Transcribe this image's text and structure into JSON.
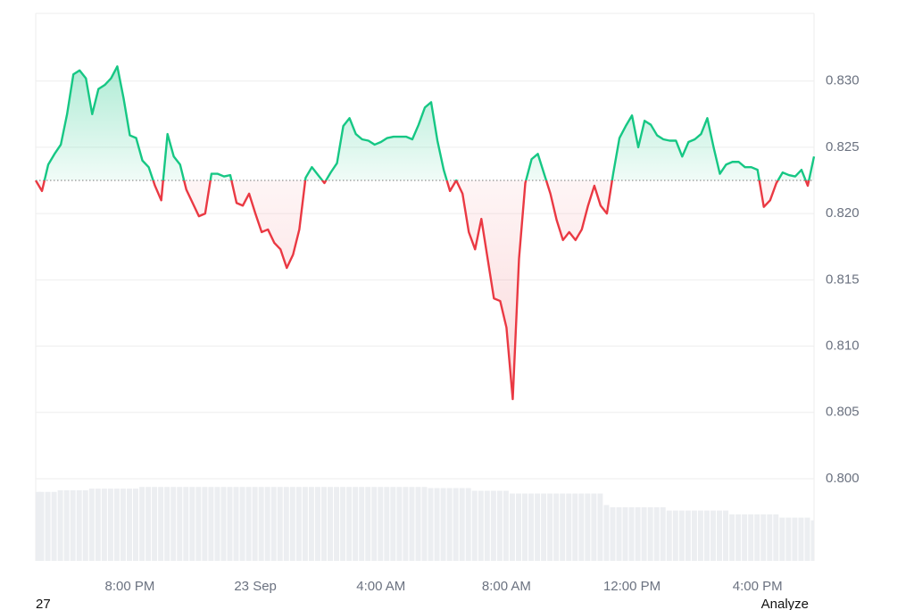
{
  "chart_data": {
    "type": "line",
    "x": [
      17,
      17.2,
      17.4,
      17.6,
      17.8,
      18,
      18.2,
      18.4,
      18.6,
      18.8,
      19,
      19.2,
      19.4,
      19.6,
      19.8,
      20,
      20.2,
      20.4,
      20.6,
      20.8,
      21,
      21.2,
      21.4,
      21.6,
      21.8,
      22,
      22.2,
      22.4,
      22.6,
      22.8,
      23,
      23.2,
      23.4,
      23.6,
      23.8,
      24,
      24.2,
      24.4,
      24.6,
      24.8,
      25,
      25.2,
      25.4,
      25.6,
      25.8,
      26,
      26.2,
      26.4,
      26.6,
      26.8,
      27,
      27.2,
      27.4,
      27.6,
      27.8,
      28,
      28.2,
      28.4,
      28.6,
      28.8,
      29,
      29.2,
      29.4,
      29.6,
      29.8,
      30,
      30.2,
      30.4,
      30.6,
      30.8,
      31,
      31.2,
      31.4,
      31.6,
      31.8,
      32,
      32.2,
      32.4,
      32.6,
      32.8,
      33,
      33.2,
      33.4,
      33.6,
      33.8,
      34,
      34.2,
      34.4,
      34.6,
      34.8,
      35,
      35.2,
      35.4,
      35.6,
      35.8,
      36,
      36.2,
      36.4,
      36.6,
      36.8,
      37,
      37.2,
      37.4,
      37.6,
      37.8,
      38,
      38.2,
      38.4,
      38.6,
      38.8,
      39,
      39.2,
      39.4,
      39.6,
      39.8,
      40,
      40.2,
      40.4,
      40.6,
      40.8,
      41,
      41.2,
      41.4,
      41.6,
      41.8
    ],
    "values": [
      0.8225,
      0.8217,
      0.8237,
      0.8245,
      0.8252,
      0.8275,
      0.8305,
      0.8308,
      0.8302,
      0.8275,
      0.8294,
      0.8297,
      0.8302,
      0.8311,
      0.8287,
      0.8259,
      0.8257,
      0.824,
      0.8235,
      0.8221,
      0.821,
      0.826,
      0.8243,
      0.8237,
      0.8218,
      0.8208,
      0.8198,
      0.82,
      0.823,
      0.823,
      0.8228,
      0.8229,
      0.8208,
      0.8206,
      0.8215,
      0.82,
      0.8186,
      0.8188,
      0.8178,
      0.8173,
      0.8159,
      0.8169,
      0.8188,
      0.8227,
      0.8235,
      0.8229,
      0.8223,
      0.8231,
      0.8238,
      0.8266,
      0.8272,
      0.826,
      0.8256,
      0.8255,
      0.8252,
      0.8254,
      0.8257,
      0.8258,
      0.8258,
      0.8258,
      0.8256,
      0.8267,
      0.828,
      0.8284,
      0.8255,
      0.8233,
      0.8217,
      0.8225,
      0.8215,
      0.8186,
      0.8173,
      0.8196,
      0.8166,
      0.8136,
      0.8134,
      0.8114,
      0.806,
      0.8166,
      0.8223,
      0.8241,
      0.8245,
      0.823,
      0.8215,
      0.8195,
      0.818,
      0.8186,
      0.818,
      0.8188,
      0.8206,
      0.8221,
      0.8206,
      0.82,
      0.823,
      0.8257,
      0.8266,
      0.8274,
      0.825,
      0.827,
      0.8267,
      0.8259,
      0.8256,
      0.8255,
      0.8255,
      0.8243,
      0.8254,
      0.8256,
      0.826,
      0.8272,
      0.825,
      0.823,
      0.8237,
      0.8239,
      0.8239,
      0.8235,
      0.8235,
      0.8233,
      0.8205,
      0.821,
      0.8223,
      0.8231,
      0.8229,
      0.8228,
      0.8233,
      0.8221,
      0.8243
    ],
    "baseline": 0.8225,
    "color_above": "#16c784",
    "color_below": "#ea3943",
    "xlim": [
      17,
      41.8
    ],
    "xticks": [
      {
        "value": 20,
        "label": "8:00 PM"
      },
      {
        "value": 24,
        "label": "23 Sep"
      },
      {
        "value": 28,
        "label": "4:00 AM"
      },
      {
        "value": 32,
        "label": "8:00 AM"
      },
      {
        "value": 36,
        "label": "12:00 PM"
      },
      {
        "value": 40,
        "label": "4:00 PM"
      }
    ],
    "ylim": [
      0.7938,
      0.8351
    ],
    "yticks": [
      {
        "value": 0.83,
        "label": "0.830"
      },
      0.825,
      {
        "value": 0.82,
        "label": "0.820"
      },
      0.815,
      {
        "value": 0.81,
        "label": "0.810"
      },
      0.805,
      {
        "value": 0.8,
        "label": "0.800"
      }
    ],
    "grid": true,
    "y2lim": [
      0,
      100
    ],
    "volume": {
      "color": "#eceef1",
      "values": [
        12.6,
        12.6,
        12.6,
        12.6,
        12.9,
        12.9,
        12.9,
        12.9,
        12.9,
        13.2,
        13.2,
        13.2,
        13.2,
        13.2,
        13.2,
        13.2,
        13.2,
        13.5,
        13.5,
        13.5,
        13.5,
        13.5,
        13.5,
        13.5,
        13.5,
        13.5,
        13.5,
        13.5,
        13.5,
        13.5,
        13.5,
        13.5,
        13.5,
        13.5,
        13.5,
        13.5,
        13.5,
        13.5,
        13.5,
        13.5,
        13.5,
        13.5,
        13.5,
        13.5,
        13.5,
        13.5,
        13.5,
        13.5,
        13.5,
        13.5,
        13.5,
        13.5,
        13.5,
        13.5,
        13.5,
        13.5,
        13.5,
        13.5,
        13.5,
        13.5,
        13.5,
        13.5,
        13.5,
        13.3,
        13.3,
        13.3,
        13.3,
        13.3,
        13.3,
        13.3,
        12.8,
        12.8,
        12.8,
        12.8,
        12.8,
        12.8,
        12.3,
        12.3,
        12.3,
        12.3,
        12.3,
        12.3,
        12.3,
        12.3,
        12.3,
        12.3,
        12.3,
        12.3,
        12.3,
        12.3,
        12.3,
        10.2,
        9.8,
        9.8,
        9.8,
        9.8,
        9.8,
        9.8,
        9.8,
        9.8,
        9.8,
        9.2,
        9.2,
        9.2,
        9.2,
        9.2,
        9.2,
        9.2,
        9.2,
        9.2,
        9.2,
        8.5,
        8.5,
        8.5,
        8.5,
        8.5,
        8.5,
        8.5,
        8.5,
        7.9,
        7.9,
        7.9,
        7.9,
        7.9,
        7.4
      ]
    }
  },
  "footer": {
    "left": "27",
    "right": "Analyze"
  }
}
